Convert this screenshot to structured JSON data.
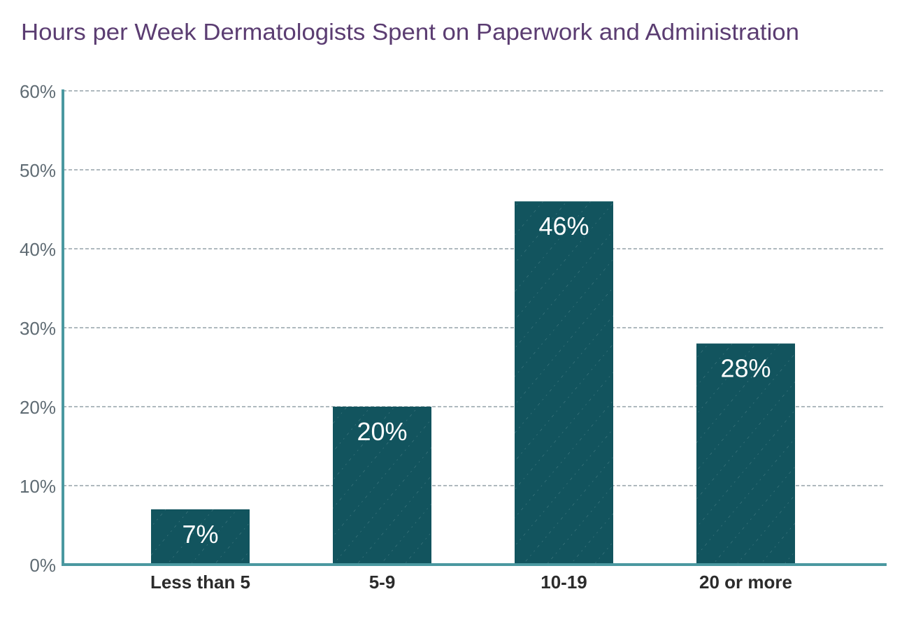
{
  "chart_data": {
    "type": "bar",
    "title": "Hours per Week Dermatologists Spent on Paperwork and Administration",
    "xlabel": "",
    "ylabel": "",
    "categories": [
      "Less than 5",
      "5-9",
      "10-19",
      "20 or more"
    ],
    "values": [
      7,
      20,
      46,
      28
    ],
    "data_labels": [
      "7%",
      "20%",
      "46%",
      "28%"
    ],
    "ylim": [
      0,
      60
    ],
    "yticks": [
      0,
      10,
      20,
      30,
      40,
      50,
      60
    ],
    "ytick_labels": [
      "0%",
      "10%",
      "20%",
      "30%",
      "40%",
      "50%",
      "60%"
    ],
    "grid": true,
    "colors": {
      "bar": "#12545e",
      "axis": "#4a98a0",
      "title": "#5b3d72",
      "grid": "#7f8f98",
      "tick": "#5f6b73",
      "category": "#2b2b2b"
    }
  }
}
